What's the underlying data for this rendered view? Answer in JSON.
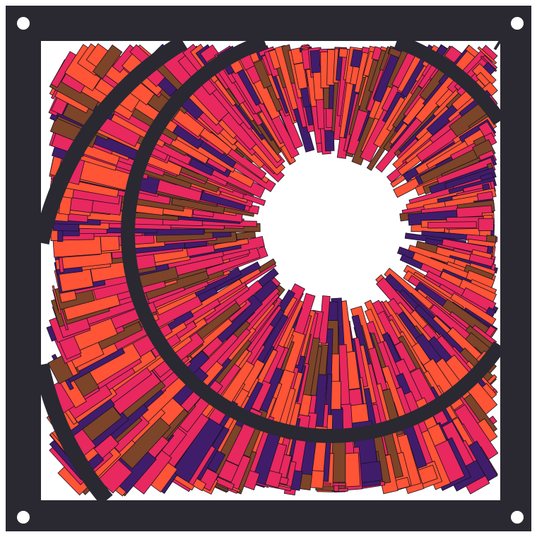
{
  "colors": {
    "frame": "#2a2831",
    "hole": "#ffffff",
    "background": "#ffffff",
    "stroke": "#1a1020",
    "palette": [
      "#e8285f",
      "#ff5436",
      "#3f1d6b",
      "#7c4428",
      "#e8285f",
      "#ff5436"
    ]
  },
  "icons": {
    "corner_holes": "mounting-hole-icon"
  }
}
